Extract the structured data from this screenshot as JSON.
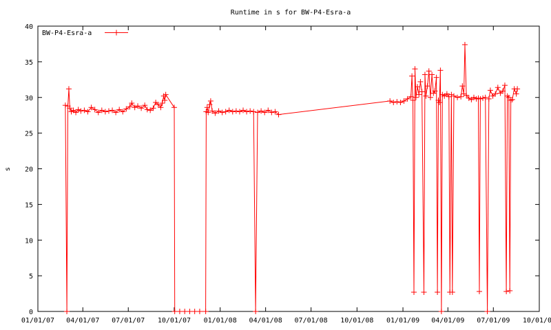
{
  "chart_data": {
    "type": "line",
    "title": "Runtime in s for BW-P4-Esra-a",
    "xlabel": "",
    "ylabel": "s",
    "x_axis_type": "date",
    "xlim": [
      "2007-01-01",
      "2009-10-01"
    ],
    "ylim": [
      0,
      40
    ],
    "x_ticks": [
      "01/01/07",
      "04/01/07",
      "07/01/07",
      "10/01/07",
      "01/01/08",
      "04/01/08",
      "07/01/08",
      "10/01/08",
      "01/01/09",
      "04/01/09",
      "07/01/09",
      "10/01/09"
    ],
    "x_tick_dates": [
      "2007-01-01",
      "2007-04-01",
      "2007-07-01",
      "2007-10-01",
      "2008-01-01",
      "2008-04-01",
      "2008-07-01",
      "2008-10-01",
      "2009-01-01",
      "2009-04-01",
      "2009-07-01",
      "2009-10-01"
    ],
    "y_ticks": [
      0,
      5,
      10,
      15,
      20,
      25,
      30,
      35,
      40
    ],
    "grid": false,
    "legend_position": "top-left",
    "colors": {
      "series": "#ff0000",
      "axis": "#000000"
    },
    "series": [
      {
        "name": "BW-P4-Esra-a",
        "points": [
          [
            "2007-02-25",
            28.9
          ],
          [
            "2007-02-28",
            0.0
          ],
          [
            "2007-03-02",
            28.8
          ],
          [
            "2007-03-04",
            31.2
          ],
          [
            "2007-03-06",
            28.5
          ],
          [
            "2007-03-09",
            28.0
          ],
          [
            "2007-03-13",
            28.2
          ],
          [
            "2007-03-18",
            27.9
          ],
          [
            "2007-03-23",
            28.3
          ],
          [
            "2007-03-28",
            28.1
          ],
          [
            "2007-04-04",
            28.2
          ],
          [
            "2007-04-11",
            28.0
          ],
          [
            "2007-04-18",
            28.6
          ],
          [
            "2007-04-25",
            28.3
          ],
          [
            "2007-05-02",
            27.9
          ],
          [
            "2007-05-09",
            28.2
          ],
          [
            "2007-05-16",
            28.0
          ],
          [
            "2007-05-23",
            28.1
          ],
          [
            "2007-05-30",
            28.2
          ],
          [
            "2007-06-06",
            27.9
          ],
          [
            "2007-06-13",
            28.3
          ],
          [
            "2007-06-20",
            28.0
          ],
          [
            "2007-06-27",
            28.4
          ],
          [
            "2007-07-04",
            28.7
          ],
          [
            "2007-07-08",
            29.2
          ],
          [
            "2007-07-14",
            28.6
          ],
          [
            "2007-07-20",
            28.8
          ],
          [
            "2007-07-27",
            28.5
          ],
          [
            "2007-08-03",
            28.9
          ],
          [
            "2007-08-08",
            28.3
          ],
          [
            "2007-08-14",
            28.2
          ],
          [
            "2007-08-20",
            28.5
          ],
          [
            "2007-08-25",
            29.3
          ],
          [
            "2007-08-30",
            29.0
          ],
          [
            "2007-09-04",
            28.6
          ],
          [
            "2007-09-07",
            29.2
          ],
          [
            "2007-09-10",
            30.2
          ],
          [
            "2007-09-12",
            29.6
          ],
          [
            "2007-09-14",
            30.4
          ],
          [
            "2007-10-01",
            28.6
          ],
          [
            "2007-10-02",
            0.0
          ],
          [
            "2007-10-12",
            0.0
          ],
          [
            "2007-10-22",
            0.0
          ],
          [
            "2007-11-01",
            0.0
          ],
          [
            "2007-11-11",
            0.0
          ],
          [
            "2007-11-21",
            0.0
          ],
          [
            "2007-12-03",
            0.0
          ],
          [
            "2007-12-04",
            28.0
          ],
          [
            "2007-12-06",
            28.6
          ],
          [
            "2007-12-08",
            27.9
          ],
          [
            "2007-12-11",
            29.0
          ],
          [
            "2007-12-13",
            29.5
          ],
          [
            "2007-12-16",
            28.1
          ],
          [
            "2007-12-22",
            27.8
          ],
          [
            "2007-12-29",
            28.1
          ],
          [
            "2008-01-05",
            27.9
          ],
          [
            "2008-01-12",
            28.0
          ],
          [
            "2008-01-19",
            28.2
          ],
          [
            "2008-01-26",
            28.0
          ],
          [
            "2008-02-02",
            28.1
          ],
          [
            "2008-02-09",
            28.0
          ],
          [
            "2008-02-16",
            28.2
          ],
          [
            "2008-02-23",
            28.0
          ],
          [
            "2008-03-01",
            28.1
          ],
          [
            "2008-03-08",
            28.0
          ],
          [
            "2008-03-12",
            0.0
          ],
          [
            "2008-03-16",
            27.9
          ],
          [
            "2008-03-23",
            28.1
          ],
          [
            "2008-03-30",
            27.9
          ],
          [
            "2008-04-06",
            28.2
          ],
          [
            "2008-04-13",
            27.9
          ],
          [
            "2008-04-20",
            28.0
          ],
          [
            "2008-04-27",
            27.6
          ],
          [
            "2008-12-06",
            29.5
          ],
          [
            "2008-12-13",
            29.3
          ],
          [
            "2008-12-20",
            29.4
          ],
          [
            "2008-12-27",
            29.3
          ],
          [
            "2009-01-03",
            29.5
          ],
          [
            "2009-01-10",
            29.8
          ],
          [
            "2009-01-17",
            30.1
          ],
          [
            "2009-01-19",
            33.0
          ],
          [
            "2009-01-21",
            29.6
          ],
          [
            "2009-01-23",
            2.7
          ],
          [
            "2009-01-25",
            34.0
          ],
          [
            "2009-01-27",
            30.0
          ],
          [
            "2009-01-30",
            31.5
          ],
          [
            "2009-02-02",
            30.4
          ],
          [
            "2009-02-05",
            32.2
          ],
          [
            "2009-02-08",
            30.8
          ],
          [
            "2009-02-12",
            2.7
          ],
          [
            "2009-02-14",
            33.2
          ],
          [
            "2009-02-16",
            30.2
          ],
          [
            "2009-02-19",
            31.6
          ],
          [
            "2009-02-22",
            33.7
          ],
          [
            "2009-02-25",
            30.0
          ],
          [
            "2009-02-28",
            33.2
          ],
          [
            "2009-03-03",
            30.6
          ],
          [
            "2009-03-06",
            30.9
          ],
          [
            "2009-03-09",
            32.8
          ],
          [
            "2009-03-11",
            2.7
          ],
          [
            "2009-03-13",
            29.6
          ],
          [
            "2009-03-15",
            29.3
          ],
          [
            "2009-03-17",
            33.8
          ],
          [
            "2009-03-19",
            0.0
          ],
          [
            "2009-03-21",
            30.4
          ],
          [
            "2009-03-25",
            30.2
          ],
          [
            "2009-03-30",
            30.5
          ],
          [
            "2009-04-03",
            30.1
          ],
          [
            "2009-04-05",
            2.7
          ],
          [
            "2009-04-08",
            30.4
          ],
          [
            "2009-04-10",
            2.7
          ],
          [
            "2009-04-13",
            30.2
          ],
          [
            "2009-04-20",
            30.0
          ],
          [
            "2009-04-27",
            30.1
          ],
          [
            "2009-04-30",
            31.6
          ],
          [
            "2009-05-03",
            30.5
          ],
          [
            "2009-05-05",
            37.4
          ],
          [
            "2009-05-08",
            30.3
          ],
          [
            "2009-05-13",
            29.9
          ],
          [
            "2009-05-18",
            29.7
          ],
          [
            "2009-05-23",
            30.0
          ],
          [
            "2009-05-28",
            29.8
          ],
          [
            "2009-06-01",
            29.9
          ],
          [
            "2009-06-03",
            2.8
          ],
          [
            "2009-06-05",
            29.8
          ],
          [
            "2009-06-10",
            29.9
          ],
          [
            "2009-06-15",
            30.0
          ],
          [
            "2009-06-19",
            0.0
          ],
          [
            "2009-06-22",
            29.8
          ],
          [
            "2009-06-25",
            31.0
          ],
          [
            "2009-06-30",
            30.2
          ],
          [
            "2009-07-05",
            30.5
          ],
          [
            "2009-07-10",
            31.4
          ],
          [
            "2009-07-15",
            30.6
          ],
          [
            "2009-07-20",
            30.9
          ],
          [
            "2009-07-24",
            31.7
          ],
          [
            "2009-07-27",
            2.8
          ],
          [
            "2009-07-29",
            30.2
          ],
          [
            "2009-08-01",
            30.0
          ],
          [
            "2009-08-03",
            2.9
          ],
          [
            "2009-08-05",
            29.6
          ],
          [
            "2009-08-08",
            29.7
          ],
          [
            "2009-08-12",
            31.2
          ],
          [
            "2009-08-16",
            30.5
          ],
          [
            "2009-08-18",
            31.2
          ]
        ]
      }
    ]
  }
}
